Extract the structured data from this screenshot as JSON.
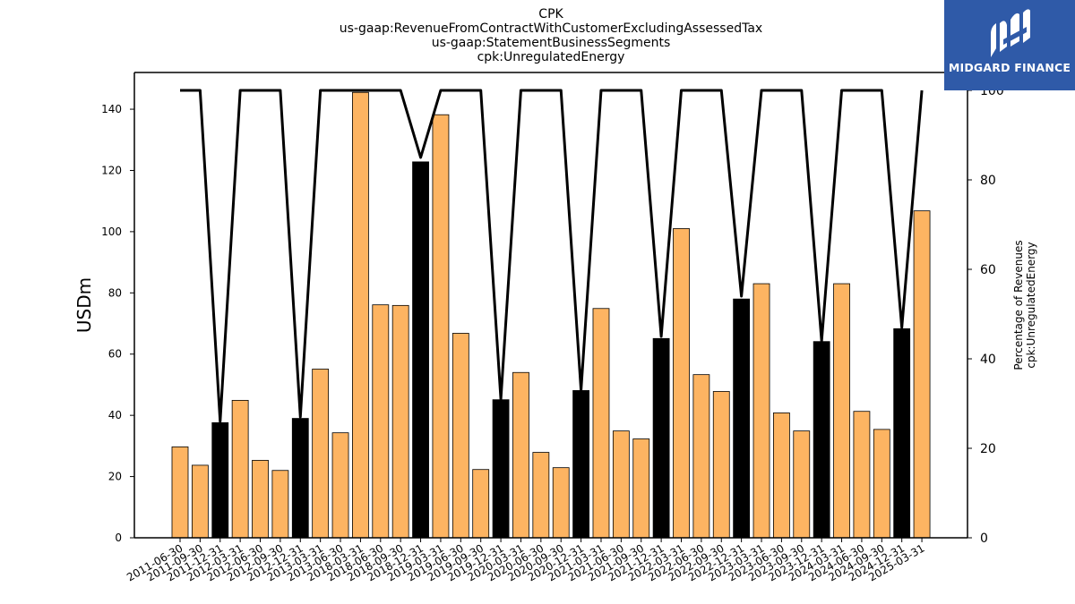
{
  "chart_data": {
    "type": "bar",
    "title_lines": [
      "CPK",
      "us-gaap:RevenueFromContractWithCustomerExcludingAssessedTax",
      "us-gaap:StatementBusinessSegments",
      "cpk:UnregulatedEnergy"
    ],
    "ylabel": "USDm",
    "ylabel_right_lines": [
      "Percentage of Revenues",
      "cpk:UnregulatedEnergy"
    ],
    "ylim": [
      0,
      152
    ],
    "y2lim": [
      0,
      104
    ],
    "yticks": [
      0,
      20,
      40,
      60,
      80,
      100,
      120,
      140
    ],
    "y2ticks": [
      0,
      20,
      40,
      60,
      80,
      100
    ],
    "categories": [
      "2011-06-30",
      "2011-09-30",
      "2011-12-31",
      "2012-03-31",
      "2012-06-30",
      "2012-09-30",
      "2012-12-31",
      "2013-03-31",
      "2013-06-30",
      "2018-03-31",
      "2018-06-30",
      "2018-09-30",
      "2018-12-31",
      "2019-03-31",
      "2019-06-30",
      "2019-09-30",
      "2019-12-31",
      "2020-03-31",
      "2020-06-30",
      "2020-09-30",
      "2020-12-31",
      "2021-03-31",
      "2021-06-30",
      "2021-09-30",
      "2021-12-31",
      "2022-03-31",
      "2022-06-30",
      "2022-09-30",
      "2022-12-31",
      "2023-03-31",
      "2023-06-30",
      "2023-09-30",
      "2023-12-31",
      "2024-03-31",
      "2024-06-30",
      "2024-09-30",
      "2024-12-31",
      "2025-03-31"
    ],
    "series": [
      {
        "type": "bar",
        "values": [
          29.7,
          23.7,
          37.6,
          44.9,
          25.3,
          22.0,
          39.0,
          55.1,
          34.3,
          145.5,
          76.1,
          75.9,
          122.8,
          138.2,
          66.8,
          22.3,
          45.1,
          54.0,
          27.9,
          22.9,
          48.1,
          74.9,
          34.9,
          32.3,
          65.1,
          101.0,
          53.3,
          47.8,
          78.0,
          83.0,
          40.8,
          34.9,
          64.1,
          83.0,
          41.3,
          35.4,
          68.3,
          106.8
        ],
        "highlight_indices": [
          2,
          6,
          12,
          16,
          20,
          24,
          28,
          32,
          36
        ]
      },
      {
        "type": "line",
        "axis": "right",
        "values": [
          100,
          100,
          26,
          100,
          100,
          100,
          27,
          100,
          100,
          100,
          100,
          100,
          85,
          100,
          100,
          100,
          31,
          100,
          100,
          100,
          33,
          100,
          100,
          100,
          45,
          100,
          100,
          100,
          54,
          100,
          100,
          100,
          44,
          100,
          100,
          100,
          47,
          100
        ]
      }
    ],
    "colors": {
      "bar": "#fdb462",
      "bar_highlight": "#000000",
      "line": "#000000"
    },
    "grid": false
  },
  "logo": {
    "text": "MIDGARD FINANCE",
    "background": "#2f5aa8"
  }
}
